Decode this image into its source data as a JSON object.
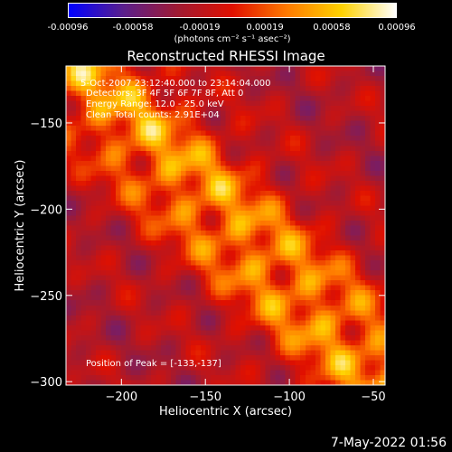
{
  "colorbar": {
    "ticks": [
      "-0.00096",
      "-0.00058",
      "-0.00019",
      "0.00019",
      "0.00058",
      "0.00096"
    ],
    "tick_values": [
      -0.00096,
      -0.00058,
      -0.00019,
      0.00019,
      0.00058,
      0.00096
    ],
    "units_label": "(photons cm⁻² s⁻¹ asec⁻²)",
    "colors": [
      "#0000ff",
      "#5a1f8c",
      "#a01a32",
      "#e01000",
      "#ff7a00",
      "#ffd200",
      "#ffffff"
    ]
  },
  "title": "Reconstructed RHESSI Image",
  "info": {
    "time_range": "5-Oct-2007 23:12:40.000 to 23:14:04.000",
    "detectors": "Detectors: 3F 4F 5F 6F 7F 8F, Att 0",
    "energy_range": "Energy Range: 12.0 - 25.0 keV",
    "algorithm_counts": "Clean     Total counts: 2.91E+04",
    "peak_position": "Position of Peak = [-133,-137]"
  },
  "footer": {
    "datetime": "7-May-2022 01:56"
  },
  "chart_data": {
    "type": "heatmap",
    "title": "Reconstructed RHESSI Image",
    "xlabel": "Heliocentric X (arcsec)",
    "ylabel": "Heliocentric Y (arcsec)",
    "xlim": [
      -233,
      -43
    ],
    "ylim": [
      -302,
      -117
    ],
    "xticks": [
      -200,
      -150,
      -100,
      -50
    ],
    "yticks": [
      -150,
      -200,
      -250,
      -300
    ],
    "xtick_labels": [
      "−200",
      "−150",
      "−100",
      "−50"
    ],
    "ytick_labels": [
      "−150",
      "−200",
      "−250",
      "−300"
    ],
    "zlim": [
      -0.00096,
      0.00096
    ],
    "peak": [
      -133,
      -137
    ]
  }
}
